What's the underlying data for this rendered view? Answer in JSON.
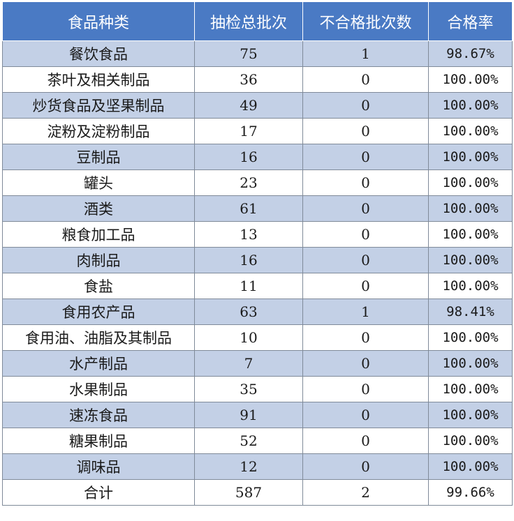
{
  "table": {
    "headers": [
      "食品种类",
      "抽检总批次",
      "不合格批次数",
      "合格率"
    ],
    "rows": [
      [
        "餐饮食品",
        "75",
        "1",
        "98.67%"
      ],
      [
        "茶叶及相关制品",
        "36",
        "0",
        "100.00%"
      ],
      [
        "炒货食品及坚果制品",
        "49",
        "0",
        "100.00%"
      ],
      [
        "淀粉及淀粉制品",
        "17",
        "0",
        "100.00%"
      ],
      [
        "豆制品",
        "16",
        "0",
        "100.00%"
      ],
      [
        "罐头",
        "23",
        "0",
        "100.00%"
      ],
      [
        "酒类",
        "61",
        "0",
        "100.00%"
      ],
      [
        "粮食加工品",
        "13",
        "0",
        "100.00%"
      ],
      [
        "肉制品",
        "16",
        "0",
        "100.00%"
      ],
      [
        "食盐",
        "11",
        "0",
        "100.00%"
      ],
      [
        "食用农产品",
        "63",
        "1",
        "98.41%"
      ],
      [
        "食用油、油脂及其制品",
        "10",
        "0",
        "100.00%"
      ],
      [
        "水产制品",
        "7",
        "0",
        "100.00%"
      ],
      [
        "水果制品",
        "35",
        "0",
        "100.00%"
      ],
      [
        "速冻食品",
        "91",
        "0",
        "100.00%"
      ],
      [
        "糖果制品",
        "52",
        "0",
        "100.00%"
      ],
      [
        "调味品",
        "12",
        "0",
        "100.00%"
      ],
      [
        "合计",
        "587",
        "2",
        "99.66%"
      ]
    ]
  },
  "colors": {
    "header_bg": "#4a7ac4",
    "header_text": "#ffffff",
    "band_row": "#c3d0e6",
    "plain_row": "#ffffff",
    "border": "#7f8a99"
  }
}
